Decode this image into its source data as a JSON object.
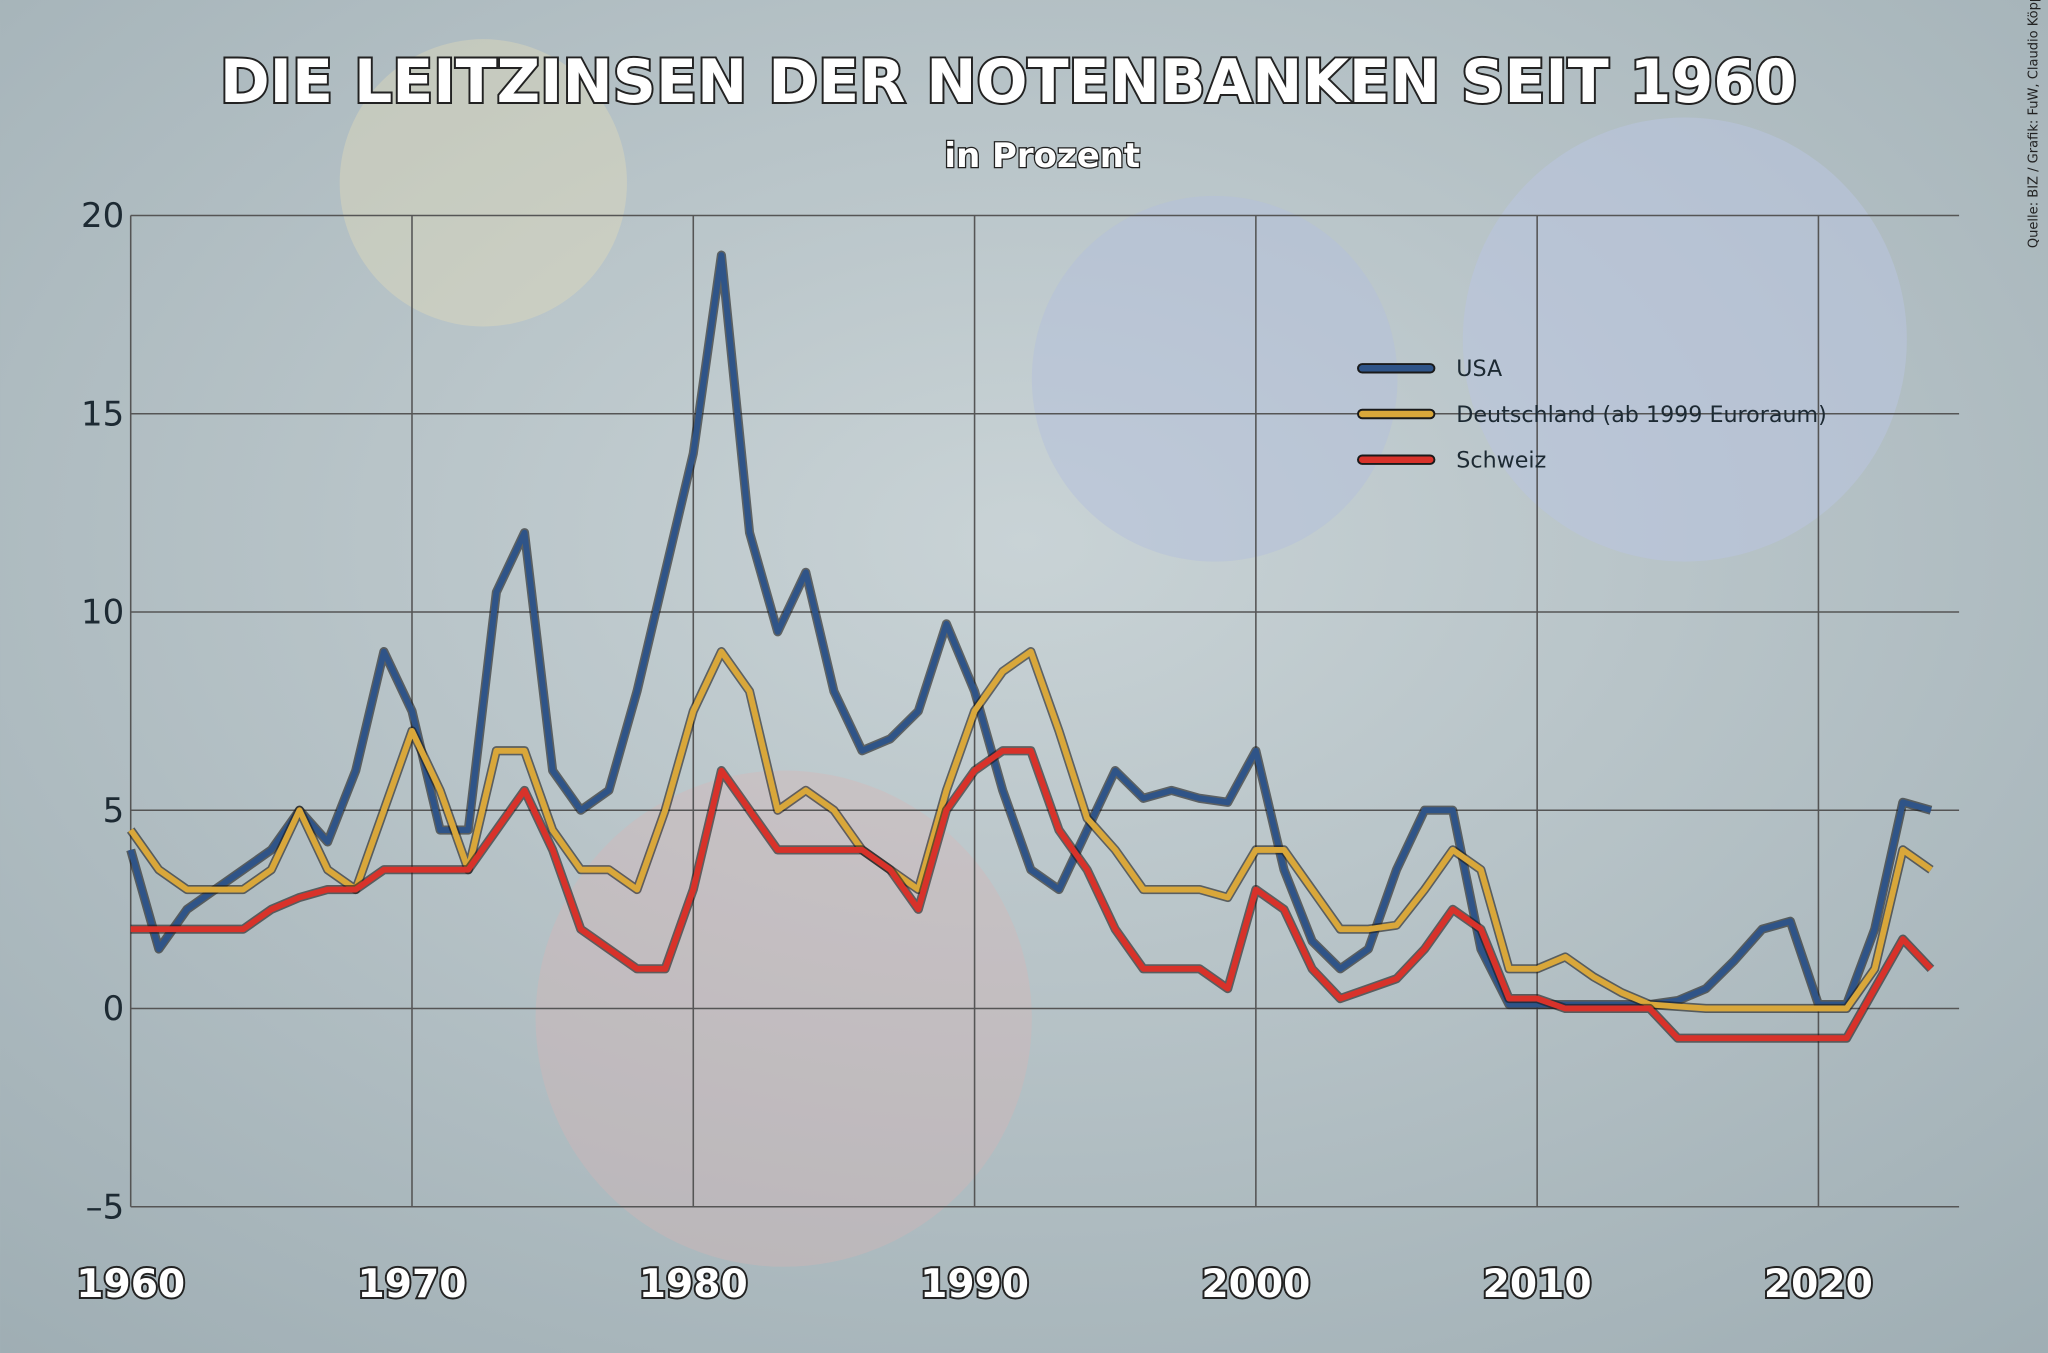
{
  "chart_data": {
    "type": "line",
    "title": "DIE LEITZINSEN DER NOTENBANKEN SEIT 1960",
    "subtitle": "in Prozent",
    "source": "Quelle: BIZ / Grafik: FuW, Claudio Köppel",
    "x": [
      1960,
      1961,
      1962,
      1963,
      1964,
      1965,
      1966,
      1967,
      1968,
      1969,
      1970,
      1971,
      1972,
      1973,
      1974,
      1975,
      1976,
      1977,
      1978,
      1979,
      1980,
      1981,
      1982,
      1983,
      1984,
      1985,
      1986,
      1987,
      1988,
      1989,
      1990,
      1991,
      1992,
      1993,
      1994,
      1995,
      1996,
      1997,
      1998,
      1999,
      2000,
      2001,
      2002,
      2003,
      2004,
      2005,
      2006,
      2007,
      2008,
      2009,
      2010,
      2011,
      2012,
      2013,
      2014,
      2015,
      2016,
      2017,
      2018,
      2019,
      2020,
      2021,
      2022,
      2023,
      2024
    ],
    "series": [
      {
        "name": "USA",
        "color": "#2f5488",
        "values": [
          4.0,
          1.5,
          2.5,
          3.0,
          3.5,
          4.0,
          5.0,
          4.2,
          6.0,
          9.0,
          7.5,
          4.5,
          4.5,
          10.5,
          12.0,
          6.0,
          5.0,
          5.5,
          8.0,
          11.0,
          14.0,
          19.0,
          12.0,
          9.5,
          11.0,
          8.0,
          6.5,
          6.8,
          7.5,
          9.7,
          8.0,
          5.5,
          3.5,
          3.0,
          4.5,
          6.0,
          5.3,
          5.5,
          5.3,
          5.2,
          6.5,
          3.5,
          1.7,
          1.0,
          1.5,
          3.5,
          5.0,
          5.0,
          1.5,
          0.1,
          0.1,
          0.1,
          0.1,
          0.1,
          0.1,
          0.2,
          0.5,
          1.2,
          2.0,
          2.2,
          0.1,
          0.1,
          2.0,
          5.2,
          5.0
        ]
      },
      {
        "name": "Deutschland (ab 1999 Euroraum)",
        "color": "#d9a73a",
        "values": [
          4.5,
          3.5,
          3.0,
          3.0,
          3.0,
          3.5,
          5.0,
          3.5,
          3.0,
          5.0,
          7.0,
          5.5,
          3.5,
          6.5,
          6.5,
          4.5,
          3.5,
          3.5,
          3.0,
          5.0,
          7.5,
          9.0,
          8.0,
          5.0,
          5.5,
          5.0,
          4.0,
          3.5,
          3.0,
          5.5,
          7.5,
          8.5,
          9.0,
          7.0,
          4.8,
          4.0,
          3.0,
          3.0,
          3.0,
          2.8,
          4.0,
          4.0,
          3.0,
          2.0,
          2.0,
          2.1,
          3.0,
          4.0,
          3.5,
          1.0,
          1.0,
          1.3,
          0.8,
          0.4,
          0.1,
          0.05,
          0,
          0,
          0,
          0,
          0,
          0,
          1.0,
          4.0,
          3.5
        ]
      },
      {
        "name": "Schweiz",
        "color": "#d8322a",
        "values": [
          2.0,
          2.0,
          2.0,
          2.0,
          2.0,
          2.5,
          2.8,
          3.0,
          3.0,
          3.5,
          3.5,
          3.5,
          3.5,
          4.5,
          5.5,
          4.0,
          2.0,
          1.5,
          1.0,
          1.0,
          3.0,
          6.0,
          5.0,
          4.0,
          4.0,
          4.0,
          4.0,
          3.5,
          2.5,
          5.0,
          6.0,
          6.5,
          6.5,
          4.5,
          3.5,
          2.0,
          1.0,
          1.0,
          1.0,
          0.5,
          3.0,
          2.5,
          1.0,
          0.25,
          0.5,
          0.75,
          1.5,
          2.5,
          2.0,
          0.25,
          0.25,
          0,
          0,
          0,
          0,
          -0.75,
          -0.75,
          -0.75,
          -0.75,
          -0.75,
          -0.75,
          -0.75,
          0.5,
          1.75,
          1.0
        ]
      }
    ],
    "xlim": [
      1960,
      2025
    ],
    "xticks": [
      1960,
      1970,
      1980,
      1990,
      2000,
      2010,
      2020
    ],
    "ylim": [
      -5,
      20
    ],
    "yticks": [
      {
        "value": -5,
        "label": "–5"
      },
      0,
      5,
      10,
      15,
      20
    ],
    "grid": true,
    "legend": "upper right"
  }
}
